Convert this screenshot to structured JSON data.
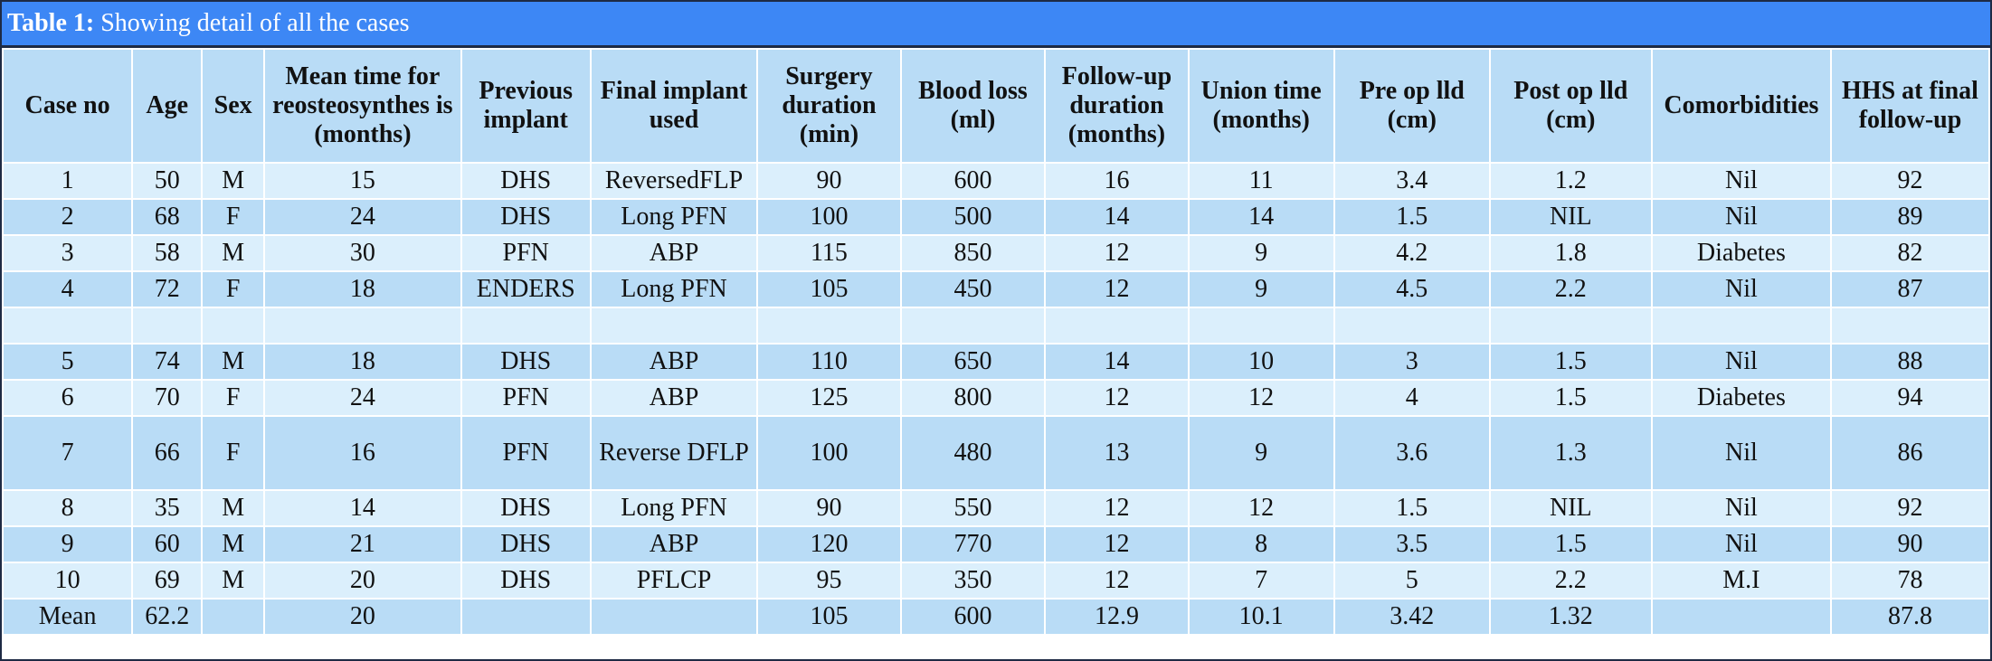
{
  "table": {
    "title_prefix": "Table 1:",
    "title_text": " Showing detail of all the cases",
    "headers": [
      "Case no",
      "Age",
      "Sex",
      "Mean time for reosteosynthes is (months)",
      "Previous implant",
      "Final implant used",
      "Surgery duration (min)",
      "Blood loss (ml)",
      "Follow-up duration (months)",
      "Union time (months)",
      "Pre op lld (cm)",
      "Post op lld (cm)",
      "Comorbidities",
      "HHS at final follow-up"
    ],
    "rows": [
      [
        "1",
        "50",
        "M",
        "15",
        "DHS",
        "ReversedFLP",
        "90",
        "600",
        "16",
        "11",
        "3.4",
        "1.2",
        "Nil",
        "92"
      ],
      [
        "2",
        "68",
        "F",
        "24",
        "DHS",
        "Long PFN",
        "100",
        "500",
        "14",
        "14",
        "1.5",
        "NIL",
        "Nil",
        "89"
      ],
      [
        "3",
        "58",
        "M",
        "30",
        "PFN",
        "ABP",
        "115",
        "850",
        "12",
        "9",
        "4.2",
        "1.8",
        "Diabetes",
        "82"
      ],
      [
        "4",
        "72",
        "F",
        "18",
        "ENDERS",
        "Long PFN",
        "105",
        "450",
        "12",
        "9",
        "4.5",
        "2.2",
        "Nil",
        "87"
      ],
      [
        "",
        "",
        "",
        "",
        "",
        "",
        "",
        "",
        "",
        "",
        "",
        "",
        "",
        ""
      ],
      [
        "5",
        "74",
        "M",
        "18",
        "DHS",
        "ABP",
        "110",
        "650",
        "14",
        "10",
        "3",
        "1.5",
        "Nil",
        "88"
      ],
      [
        "6",
        "70",
        "F",
        "24",
        "PFN",
        "ABP",
        "125",
        "800",
        "12",
        "12",
        "4",
        "1.5",
        "Diabetes",
        "94"
      ],
      [
        "7",
        "66",
        "F",
        "16",
        "PFN",
        "Reverse DFLP",
        "100",
        "480",
        "13",
        "9",
        "3.6",
        "1.3",
        "Nil",
        "86"
      ],
      [
        "8",
        "35",
        "M",
        "14",
        "DHS",
        "Long PFN",
        "90",
        "550",
        "12",
        "12",
        "1.5",
        "NIL",
        "Nil",
        "92"
      ],
      [
        "9",
        "60",
        "M",
        "21",
        "DHS",
        "ABP",
        "120",
        "770",
        "12",
        "8",
        "3.5",
        "1.5",
        "Nil",
        "90"
      ],
      [
        "10",
        "69",
        "M",
        "20",
        "DHS",
        "PFLCP",
        "95",
        "350",
        "12",
        "7",
        "5",
        "2.2",
        "M.I",
        "78"
      ]
    ],
    "mean_row": [
      "Mean",
      "62.2",
      "",
      "20",
      "",
      "",
      "105",
      "600",
      "12.9",
      "10.1",
      "3.42",
      "1.32",
      "",
      "87.8"
    ]
  }
}
